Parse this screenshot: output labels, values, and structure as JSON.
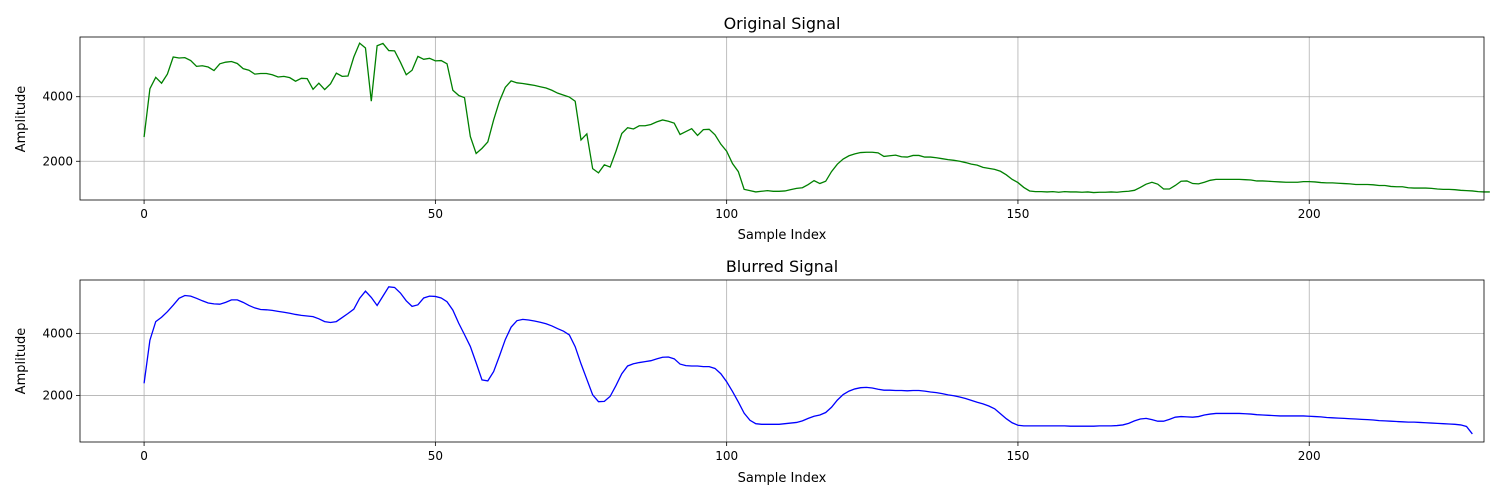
{
  "chart_data": [
    {
      "type": "line",
      "title": "Original Signal",
      "xlabel": "Sample Index",
      "ylabel": "Amplitude",
      "xlim": [
        -11,
        230
      ],
      "ylim": [
        800,
        5850
      ],
      "xticks": [
        0,
        50,
        100,
        150,
        200
      ],
      "yticks": [
        2000,
        4000
      ],
      "grid": true,
      "color": "#008000",
      "x_start": 0,
      "y": [
        2750,
        4250,
        4600,
        4420,
        4700,
        5230,
        5200,
        5210,
        5120,
        4940,
        4960,
        4920,
        4810,
        5020,
        5070,
        5090,
        5030,
        4870,
        4820,
        4700,
        4720,
        4720,
        4680,
        4610,
        4630,
        4590,
        4480,
        4570,
        4560,
        4230,
        4420,
        4220,
        4400,
        4730,
        4630,
        4640,
        5230,
        5660,
        5510,
        3860,
        5580,
        5650,
        5430,
        5420,
        5070,
        4680,
        4820,
        5250,
        5160,
        5190,
        5110,
        5120,
        5020,
        4200,
        4040,
        3970,
        2770,
        2240,
        2400,
        2600,
        3280,
        3860,
        4290,
        4490,
        4430,
        4410,
        4380,
        4350,
        4310,
        4270,
        4200,
        4110,
        4050,
        3990,
        3860,
        2660,
        2850,
        1770,
        1640,
        1890,
        1820,
        2310,
        2860,
        3040,
        3000,
        3100,
        3100,
        3140,
        3220,
        3280,
        3240,
        3180,
        2830,
        2920,
        3010,
        2800,
        2980,
        2990,
        2820,
        2530,
        2310,
        1930,
        1680,
        1130,
        1090,
        1050,
        1070,
        1090,
        1070,
        1070,
        1080,
        1120,
        1160,
        1180,
        1280,
        1400,
        1310,
        1380,
        1680,
        1910,
        2070,
        2170,
        2230,
        2270,
        2280,
        2280,
        2260,
        2150,
        2170,
        2190,
        2140,
        2130,
        2180,
        2180,
        2130,
        2130,
        2110,
        2080,
        2050,
        2030,
        2000,
        1960,
        1910,
        1880,
        1810,
        1780,
        1750,
        1690,
        1580,
        1440,
        1340,
        1190,
        1080,
        1060,
        1060,
        1050,
        1060,
        1040,
        1060,
        1050,
        1050,
        1040,
        1050,
        1030,
        1040,
        1040,
        1050,
        1040,
        1060,
        1070,
        1100,
        1190,
        1290,
        1350,
        1290,
        1140,
        1140,
        1250,
        1380,
        1390,
        1310,
        1300,
        1350,
        1410,
        1440,
        1440,
        1440,
        1440,
        1440,
        1430,
        1420,
        1390,
        1390,
        1380,
        1370,
        1360,
        1350,
        1350,
        1350,
        1370,
        1370,
        1360,
        1340,
        1330,
        1330,
        1320,
        1310,
        1300,
        1280,
        1280,
        1280,
        1270,
        1250,
        1250,
        1220,
        1210,
        1210,
        1180,
        1170,
        1170,
        1170,
        1160,
        1140,
        1130,
        1130,
        1120,
        1100,
        1090,
        1080,
        1060,
        1050,
        1050
      ]
    },
    {
      "type": "line",
      "title": "Blurred Signal",
      "xlabel": "Sample Index",
      "ylabel": "Amplitude",
      "xlim": [
        -11,
        230
      ],
      "ylim": [
        500,
        5720
      ],
      "xticks": [
        0,
        50,
        100,
        150,
        200
      ],
      "yticks": [
        2000,
        4000
      ],
      "grid": true,
      "color": "#0000ff",
      "x_start": 0,
      "y": [
        2390,
        3780,
        4380,
        4520,
        4700,
        4910,
        5130,
        5220,
        5200,
        5130,
        5050,
        4980,
        4950,
        4940,
        5000,
        5080,
        5080,
        5000,
        4900,
        4820,
        4770,
        4760,
        4740,
        4710,
        4680,
        4650,
        4610,
        4580,
        4560,
        4540,
        4470,
        4380,
        4350,
        4380,
        4510,
        4640,
        4780,
        5130,
        5360,
        5160,
        4900,
        5200,
        5500,
        5480,
        5300,
        5050,
        4870,
        4920,
        5140,
        5200,
        5190,
        5140,
        5020,
        4750,
        4330,
        3960,
        3580,
        3050,
        2500,
        2470,
        2770,
        3270,
        3800,
        4200,
        4410,
        4450,
        4430,
        4400,
        4360,
        4310,
        4240,
        4150,
        4070,
        3950,
        3570,
        3020,
        2520,
        2020,
        1800,
        1810,
        1970,
        2320,
        2700,
        2950,
        3020,
        3060,
        3090,
        3120,
        3180,
        3230,
        3240,
        3180,
        3010,
        2960,
        2950,
        2950,
        2930,
        2930,
        2870,
        2700,
        2440,
        2130,
        1790,
        1430,
        1200,
        1090,
        1070,
        1070,
        1070,
        1070,
        1090,
        1110,
        1130,
        1180,
        1260,
        1330,
        1370,
        1450,
        1620,
        1850,
        2030,
        2140,
        2210,
        2250,
        2260,
        2240,
        2200,
        2170,
        2170,
        2160,
        2160,
        2150,
        2160,
        2160,
        2140,
        2110,
        2090,
        2060,
        2020,
        1990,
        1950,
        1900,
        1840,
        1780,
        1730,
        1660,
        1570,
        1410,
        1250,
        1120,
        1040,
        1020,
        1020,
        1020,
        1020,
        1020,
        1020,
        1020,
        1020,
        1010,
        1010,
        1010,
        1010,
        1010,
        1020,
        1020,
        1020,
        1030,
        1050,
        1100,
        1180,
        1240,
        1260,
        1220,
        1170,
        1170,
        1230,
        1300,
        1320,
        1310,
        1300,
        1320,
        1370,
        1400,
        1420,
        1420,
        1420,
        1420,
        1420,
        1410,
        1400,
        1380,
        1370,
        1360,
        1350,
        1340,
        1340,
        1340,
        1340,
        1340,
        1330,
        1320,
        1310,
        1290,
        1280,
        1270,
        1260,
        1250,
        1240,
        1230,
        1220,
        1210,
        1190,
        1180,
        1170,
        1160,
        1150,
        1140,
        1140,
        1130,
        1120,
        1110,
        1100,
        1090,
        1080,
        1070,
        1050,
        1000,
        760
      ]
    }
  ]
}
